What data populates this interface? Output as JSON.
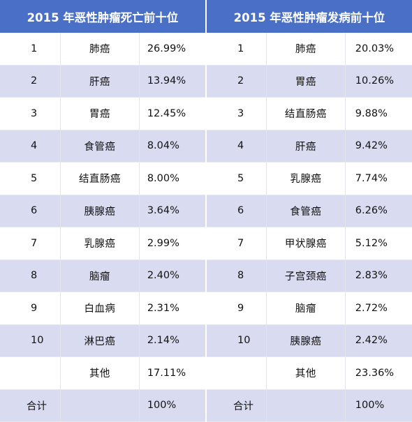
{
  "headers": {
    "mortality": "2015 年恶性肿瘤死亡前十位",
    "incidence": "2015 年恶性肿瘤发病前十位"
  },
  "rows": [
    {
      "m_rank": "1",
      "m_name": "肺癌",
      "m_pct": "26.99%",
      "i_rank": "1",
      "i_name": "肺癌",
      "i_pct": "20.03%"
    },
    {
      "m_rank": "2",
      "m_name": "肝癌",
      "m_pct": "13.94%",
      "i_rank": "2",
      "i_name": "胃癌",
      "i_pct": "10.26%"
    },
    {
      "m_rank": "3",
      "m_name": "胃癌",
      "m_pct": "12.45%",
      "i_rank": "3",
      "i_name": "结直肠癌",
      "i_pct": "9.88%"
    },
    {
      "m_rank": "4",
      "m_name": "食管癌",
      "m_pct": "8.04%",
      "i_rank": "4",
      "i_name": "肝癌",
      "i_pct": "9.42%"
    },
    {
      "m_rank": "5",
      "m_name": "结直肠癌",
      "m_pct": "8.00%",
      "i_rank": "5",
      "i_name": "乳腺癌",
      "i_pct": "7.74%"
    },
    {
      "m_rank": "6",
      "m_name": "胰腺癌",
      "m_pct": "3.64%",
      "i_rank": "6",
      "i_name": "食管癌",
      "i_pct": "6.26%"
    },
    {
      "m_rank": "7",
      "m_name": "乳腺癌",
      "m_pct": "2.99%",
      "i_rank": "7",
      "i_name": "甲状腺癌",
      "i_pct": "5.12%"
    },
    {
      "m_rank": "8",
      "m_name": "脑瘤",
      "m_pct": "2.40%",
      "i_rank": "8",
      "i_name": "子宫颈癌",
      "i_pct": "2.83%"
    },
    {
      "m_rank": "9",
      "m_name": "白血病",
      "m_pct": "2.31%",
      "i_rank": "9",
      "i_name": "脑瘤",
      "i_pct": "2.72%"
    },
    {
      "m_rank": "10",
      "m_name": "淋巴癌",
      "m_pct": "2.14%",
      "i_rank": "10",
      "i_name": "胰腺癌",
      "i_pct": "2.42%"
    },
    {
      "m_rank": "",
      "m_name": "其他",
      "m_pct": "17.11%",
      "i_rank": "",
      "i_name": "其他",
      "i_pct": "23.36%"
    }
  ],
  "total": {
    "m_label": "合计",
    "m_pct": "100%",
    "i_label": "合计",
    "i_pct": "100%"
  },
  "colors": {
    "header_bg": "#4a6fc7",
    "stripe_bg": "#d9dcf0"
  }
}
